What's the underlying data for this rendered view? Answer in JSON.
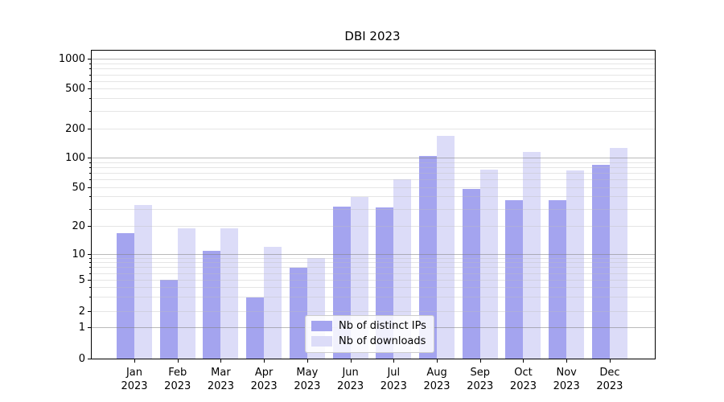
{
  "chart_data": {
    "type": "bar",
    "title": "DBI 2023",
    "yscale": "symlog",
    "ylim": [
      0,
      1000
    ],
    "grid": "on",
    "legend_position": "lower center",
    "categories": [
      "Jan",
      "Feb",
      "Mar",
      "Apr",
      "May",
      "Jun",
      "Jul",
      "Aug",
      "Sep",
      "Oct",
      "Nov",
      "Dec"
    ],
    "category_year": "2023",
    "y_tick_labels": [
      "0",
      "1",
      "2",
      "5",
      "10",
      "20",
      "50",
      "100",
      "200",
      "500",
      "1000"
    ],
    "series": [
      {
        "name": "Nb of distinct IPs",
        "color": "#a4a4ef",
        "values": [
          17,
          5,
          11,
          3,
          7,
          32,
          31,
          105,
          48,
          37,
          37,
          85
        ]
      },
      {
        "name": "Nb of downloads",
        "color": "#dcdcf8",
        "values": [
          33,
          19,
          19,
          12,
          9,
          40,
          60,
          170,
          76,
          115,
          74,
          128
        ]
      }
    ]
  }
}
